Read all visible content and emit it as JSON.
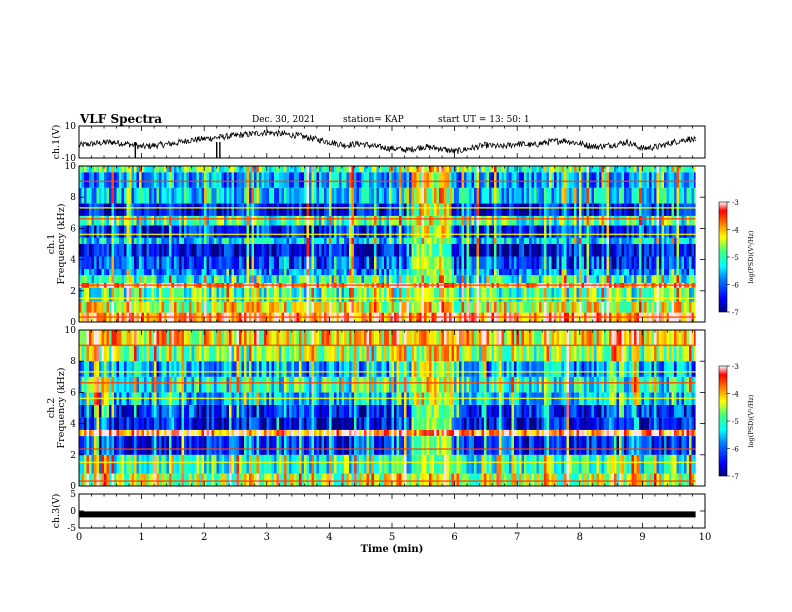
{
  "header": {
    "title": "VLF Spectra",
    "date": "Dec. 30, 2021",
    "station": "station= KAP",
    "start": "start  UT  =   13: 50: 1"
  },
  "colorbar": {
    "label": "log(PSD)(V²/Hz)",
    "ticks": [
      "-3",
      "-4",
      "-5",
      "-6",
      "-7"
    ],
    "colors": [
      "#000080",
      "#0000ff",
      "#0080ff",
      "#00ffff",
      "#40ff80",
      "#ffff00",
      "#ff8000",
      "#ff0000",
      "#ffffff"
    ]
  },
  "chart_data": [
    {
      "type": "line",
      "name": "ch1-voltage",
      "ylabel": "ch.1(V)",
      "ylim": [
        -10,
        10
      ],
      "yticks": [
        "10",
        "-10"
      ],
      "xlim": [
        0,
        10
      ],
      "x": [
        0,
        0.25,
        0.5,
        0.75,
        1.0,
        1.25,
        1.5,
        1.75,
        2.0,
        2.25,
        2.5,
        2.75,
        3.0,
        3.25,
        3.5,
        3.75,
        4.0,
        4.25,
        4.5,
        4.75,
        5.0,
        5.25,
        5.5,
        5.75,
        6.0,
        6.25,
        6.5,
        6.75,
        7.0,
        7.25,
        7.5,
        7.75,
        8.0,
        8.25,
        8.5,
        8.75,
        9.0,
        9.25,
        9.5,
        9.75,
        9.85
      ],
      "values": [
        -2,
        -1,
        0,
        -1,
        -3,
        -2,
        -1,
        1,
        2,
        3,
        4,
        5,
        6,
        5,
        4,
        2,
        0,
        -2,
        -1,
        -3,
        -4,
        -5,
        -3,
        -4,
        -6,
        -4,
        -2,
        -3,
        -1,
        -2,
        0,
        1,
        -1,
        -3,
        -2,
        0,
        -4,
        -3,
        0,
        2,
        1
      ]
    },
    {
      "type": "heatmap",
      "name": "ch1-spectrogram",
      "ylabel": "ch.1\nFrequency (kHz)",
      "ylim": [
        0,
        10
      ],
      "yticks": [
        "0",
        "2",
        "4",
        "6",
        "8",
        "10"
      ],
      "xlim": [
        0,
        10
      ],
      "color_scale": {
        "min": -7,
        "max": -3,
        "label": "log(PSD)(V²/Hz)"
      },
      "bands_khz": [
        {
          "from": 0,
          "to": 0.6,
          "level": -3.6
        },
        {
          "from": 0.6,
          "to": 1.3,
          "level": -4.4
        },
        {
          "from": 1.3,
          "to": 2.2,
          "level": -5.0
        },
        {
          "from": 2.2,
          "to": 2.5,
          "level": -3.5
        },
        {
          "from": 2.5,
          "to": 3.0,
          "level": -5.2
        },
        {
          "from": 3.0,
          "to": 3.4,
          "level": -6.0
        },
        {
          "from": 3.4,
          "to": 4.2,
          "level": -6.2
        },
        {
          "from": 4.2,
          "to": 5.0,
          "level": -6.6
        },
        {
          "from": 5.0,
          "to": 5.4,
          "level": -5.5
        },
        {
          "from": 5.4,
          "to": 6.2,
          "level": -6.4
        },
        {
          "from": 6.2,
          "to": 6.8,
          "level": -5.0
        },
        {
          "from": 6.8,
          "to": 7.6,
          "level": -6.5
        },
        {
          "from": 7.6,
          "to": 8.6,
          "level": -5.5
        },
        {
          "from": 8.6,
          "to": 9.6,
          "level": -5.8
        },
        {
          "from": 9.6,
          "to": 10,
          "level": -5.0
        }
      ],
      "burst_time_min": [
        5.3,
        5.95
      ],
      "burst_level": -3.4
    },
    {
      "type": "heatmap",
      "name": "ch2-spectrogram",
      "ylabel": "ch.2\nFrequency (kHz)",
      "ylim": [
        0,
        10
      ],
      "yticks": [
        "0",
        "2",
        "4",
        "6",
        "8",
        "10"
      ],
      "xlim": [
        0,
        10
      ],
      "color_scale": {
        "min": -7,
        "max": -3,
        "label": "log(PSD)(V²/Hz)"
      },
      "bands_khz": [
        {
          "from": 0,
          "to": 0.8,
          "level": -4.6
        },
        {
          "from": 0.8,
          "to": 2.0,
          "level": -5.1
        },
        {
          "from": 2.0,
          "to": 3.2,
          "level": -6.4
        },
        {
          "from": 3.2,
          "to": 3.6,
          "level": -3.6
        },
        {
          "from": 3.6,
          "to": 4.4,
          "level": -6.6
        },
        {
          "from": 4.4,
          "to": 5.2,
          "level": -6.3
        },
        {
          "from": 5.2,
          "to": 6.0,
          "level": -5.6
        },
        {
          "from": 6.0,
          "to": 7.0,
          "level": -5.2
        },
        {
          "from": 7.0,
          "to": 8.0,
          "level": -5.8
        },
        {
          "from": 8.0,
          "to": 9.0,
          "level": -4.8
        },
        {
          "from": 9.0,
          "to": 10,
          "level": -4.2
        }
      ],
      "burst_time_min": [
        5.3,
        5.95
      ],
      "burst_level": -3.4
    },
    {
      "type": "line",
      "name": "ch3-voltage",
      "ylabel": "ch.3(V)",
      "ylim": [
        -5,
        5
      ],
      "yticks": [
        "5",
        "0",
        "-5"
      ],
      "xlim": [
        0,
        10
      ],
      "x": [
        0,
        9.85
      ],
      "values": [
        -1,
        -1
      ]
    }
  ],
  "xaxis": {
    "label": "Time (min)",
    "ticks": [
      "0",
      "1",
      "2",
      "3",
      "4",
      "5",
      "6",
      "7",
      "8",
      "9",
      "10"
    ]
  }
}
